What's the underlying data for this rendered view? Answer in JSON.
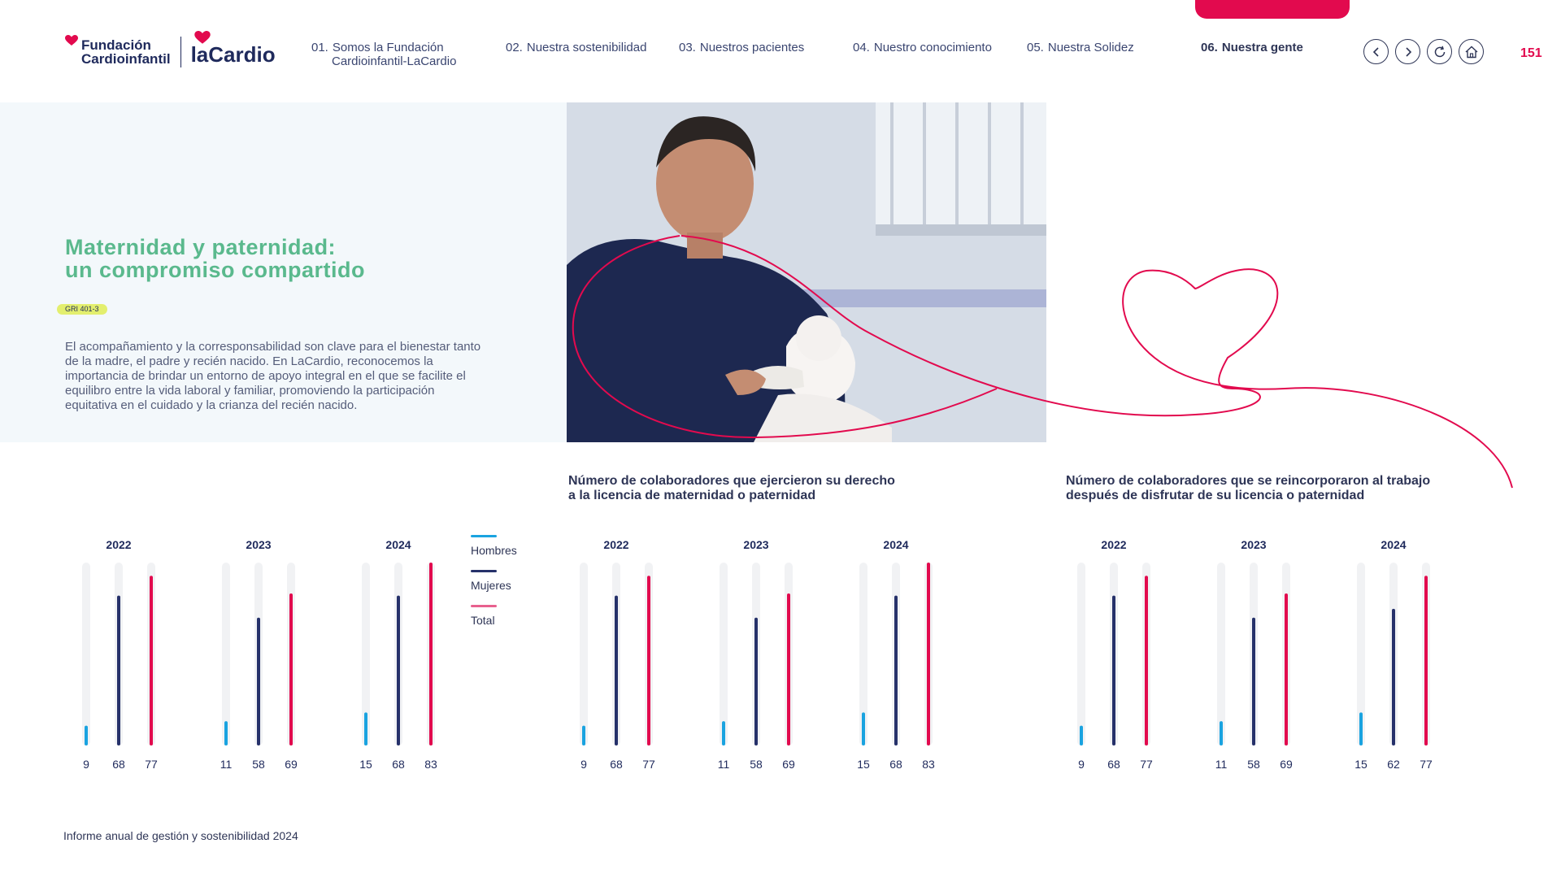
{
  "header": {
    "logo": {
      "fci_line1": "Fundación",
      "fci_line2": "Cardioinfantil",
      "lacardio": "laCardio"
    },
    "nav": [
      {
        "num": "01.",
        "label": "Somos la Fundación",
        "label2": "Cardioinfantil-LaCardio",
        "active": false
      },
      {
        "num": "02.",
        "label": "Nuestra sostenibilidad",
        "active": false
      },
      {
        "num": "03.",
        "label": "Nuestros pacientes",
        "active": false
      },
      {
        "num": "04.",
        "label": "Nuestro conocimiento",
        "active": false
      },
      {
        "num": "05.",
        "label": "Nuestra Solidez",
        "active": false
      },
      {
        "num": "06.",
        "label": "Nuestra gente",
        "active": true
      }
    ],
    "buttons": [
      "back-icon",
      "forward-icon",
      "refresh-icon",
      "home-icon"
    ],
    "page_number": "151",
    "accent": "#e20a4e"
  },
  "hero": {
    "title_line1": "Maternidad y paternidad:",
    "title_line2": "un compromiso compartido",
    "gri": "GRI 401-3",
    "intro": "El acompañamiento y la corresponsabilidad son clave para el bienestar tanto de la madre, el padre y recién nacido. En LaCardio, reconocemos la importancia de brindar un entorno de apoyo integral en el que se facilite el equilibro entre la vida laboral y familiar, promoviendo la participación equitativa en el cuidado y la crianza del recién nacido."
  },
  "legend": [
    {
      "label": "Hombres",
      "color": "#1aa3e0"
    },
    {
      "label": "Mujeres",
      "color": "#26316a"
    },
    {
      "label": "Total",
      "color": "#e8608e"
    }
  ],
  "chart_titles": {
    "chart2_line1": "Número de colaboradores que ejercieron su derecho",
    "chart2_line2": "a la licencia de maternidad o paternidad",
    "chart3_line1": "Número de colaboradores que se reincorporaron al trabajo",
    "chart3_line2": "después de disfrutar de su licencia o paternidad"
  },
  "chart_data": [
    {
      "type": "bar",
      "categories": [
        "2022",
        "2023",
        "2024"
      ],
      "series": [
        {
          "name": "Hombres",
          "values": [
            9,
            11,
            15
          ],
          "color": "#1aa3e0"
        },
        {
          "name": "Mujeres",
          "values": [
            68,
            58,
            68
          ],
          "color": "#26316a"
        },
        {
          "name": "Total",
          "values": [
            77,
            69,
            83
          ],
          "color": "#e20a4e"
        }
      ],
      "ylim": [
        0,
        83
      ]
    },
    {
      "type": "bar",
      "title": "Número de colaboradores que ejercieron su derecho a la licencia de maternidad o paternidad",
      "categories": [
        "2022",
        "2023",
        "2024"
      ],
      "series": [
        {
          "name": "Hombres",
          "values": [
            9,
            11,
            15
          ],
          "color": "#1aa3e0"
        },
        {
          "name": "Mujeres",
          "values": [
            68,
            58,
            68
          ],
          "color": "#26316a"
        },
        {
          "name": "Total",
          "values": [
            77,
            69,
            83
          ],
          "color": "#e20a4e"
        }
      ],
      "ylim": [
        0,
        83
      ]
    },
    {
      "type": "bar",
      "title": "Número de colaboradores que se reincorporaron al trabajo después de disfrutar de su licencia o paternidad",
      "categories": [
        "2022",
        "2023",
        "2024"
      ],
      "series": [
        {
          "name": "Hombres",
          "values": [
            9,
            11,
            15
          ],
          "color": "#1aa3e0"
        },
        {
          "name": "Mujeres",
          "values": [
            68,
            58,
            62
          ],
          "color": "#26316a"
        },
        {
          "name": "Total",
          "values": [
            77,
            69,
            77
          ],
          "color": "#e20a4e"
        }
      ],
      "ylim": [
        0,
        83
      ]
    }
  ],
  "footer": "Informe anual de gestión y sostenibilidad 2024"
}
